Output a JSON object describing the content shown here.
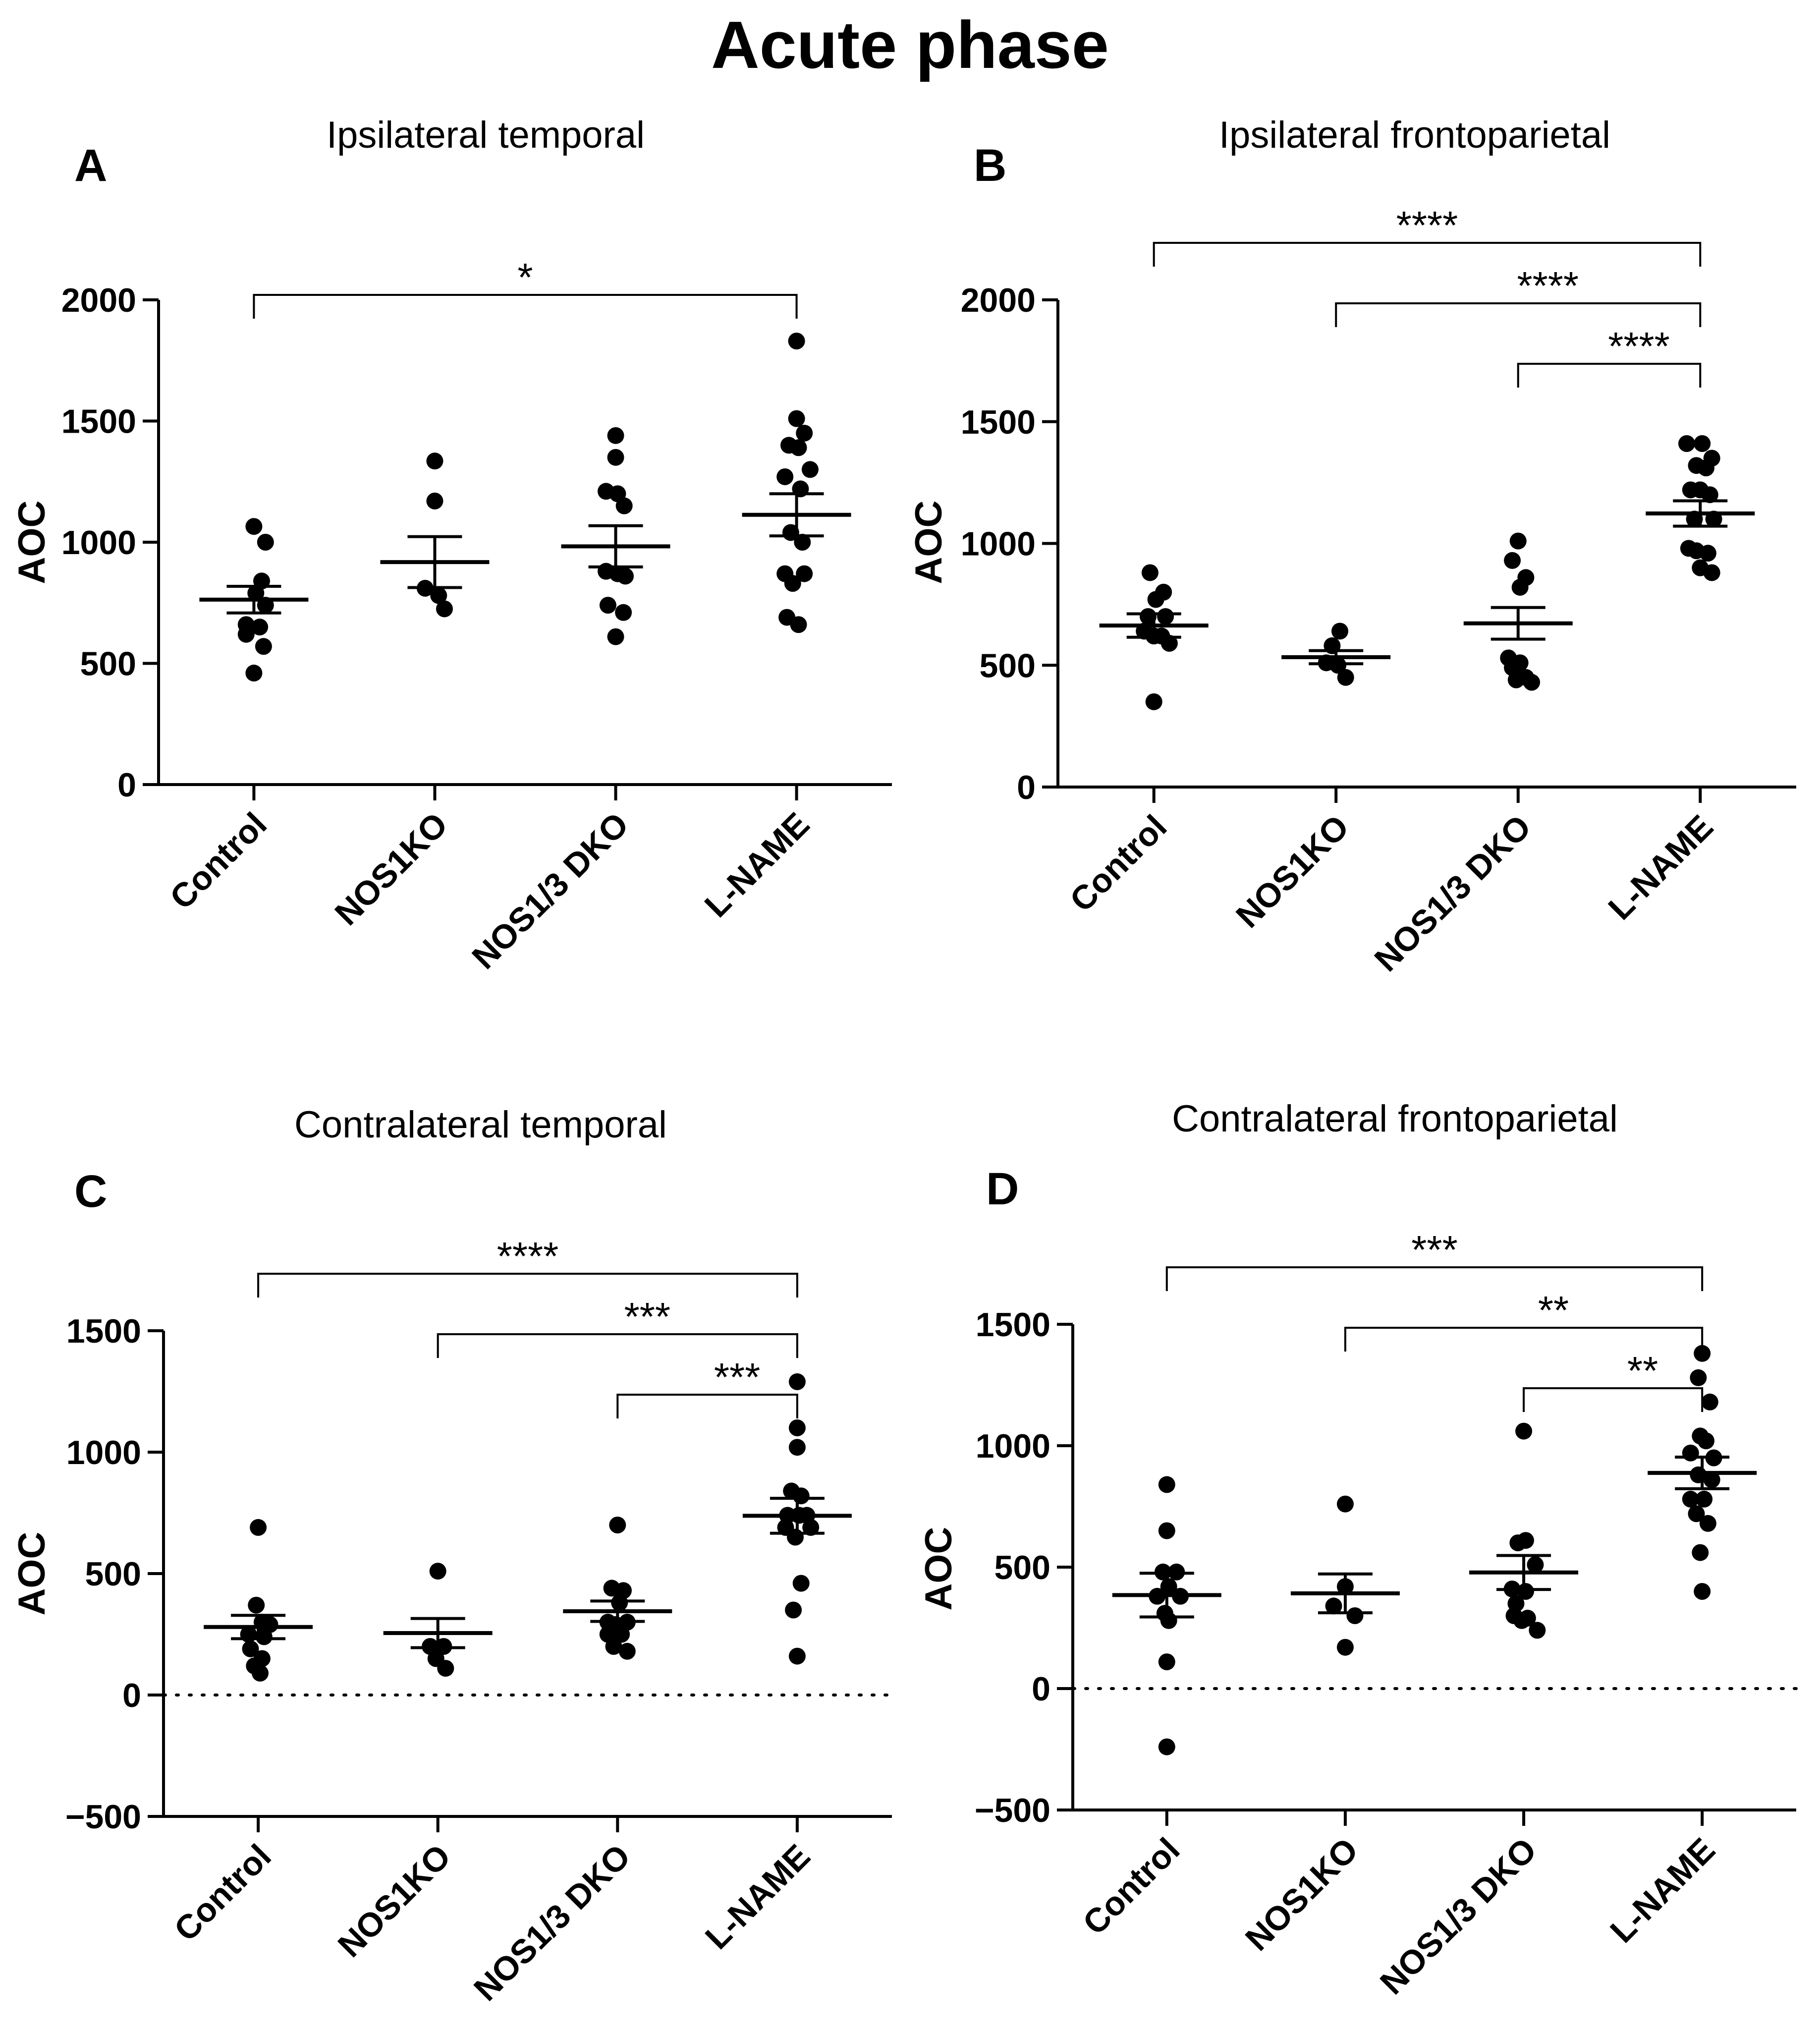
{
  "title": "Acute phase",
  "point_color": "#000000",
  "chart_data": [
    {
      "type": "scatter",
      "panel": "A",
      "title": "Ipsilateral temporal",
      "ylabel": "AOC",
      "ylim": [
        0,
        2000
      ],
      "yticks": [
        0,
        500,
        1000,
        1500,
        2000
      ],
      "zero_line": false,
      "categories": [
        "Control",
        "NOS1KO",
        "NOS1/3 DKO",
        "L-NAME"
      ],
      "points": [
        [
          {
            "x": 0,
            "y": 1065
          },
          {
            "x": 0.3,
            "y": 1000
          },
          {
            "x": 0.2,
            "y": 840
          },
          {
            "x": 0.05,
            "y": 790
          },
          {
            "x": 0.3,
            "y": 740
          },
          {
            "x": -0.2,
            "y": 660
          },
          {
            "x": 0.15,
            "y": 650
          },
          {
            "x": -0.2,
            "y": 620
          },
          {
            "x": 0.25,
            "y": 570
          },
          {
            "x": 0,
            "y": 460
          }
        ],
        [
          {
            "x": 0,
            "y": 1335
          },
          {
            "x": 0,
            "y": 1170
          },
          {
            "x": -0.25,
            "y": 810
          },
          {
            "x": 0.1,
            "y": 780
          },
          {
            "x": 0.25,
            "y": 725
          }
        ],
        [
          {
            "x": 0,
            "y": 1440
          },
          {
            "x": 0,
            "y": 1350
          },
          {
            "x": -0.25,
            "y": 1210
          },
          {
            "x": 0.05,
            "y": 1200
          },
          {
            "x": 0.22,
            "y": 1150
          },
          {
            "x": -0.25,
            "y": 880
          },
          {
            "x": 0.05,
            "y": 870
          },
          {
            "x": 0.25,
            "y": 860
          },
          {
            "x": -0.2,
            "y": 740
          },
          {
            "x": 0.2,
            "y": 710
          },
          {
            "x": 0,
            "y": 610
          }
        ],
        [
          {
            "x": 0,
            "y": 1830
          },
          {
            "x": 0,
            "y": 1510
          },
          {
            "x": 0.2,
            "y": 1450
          },
          {
            "x": -0.2,
            "y": 1400
          },
          {
            "x": 0.05,
            "y": 1390
          },
          {
            "x": 0.35,
            "y": 1300
          },
          {
            "x": -0.3,
            "y": 1270
          },
          {
            "x": 0.1,
            "y": 1220
          },
          {
            "x": -0.15,
            "y": 1040
          },
          {
            "x": 0.15,
            "y": 1000
          },
          {
            "x": -0.3,
            "y": 870
          },
          {
            "x": 0.2,
            "y": 870
          },
          {
            "x": -0.1,
            "y": 830
          },
          {
            "x": -0.25,
            "y": 690
          },
          {
            "x": 0.05,
            "y": 660
          }
        ]
      ],
      "mean": [
        763,
        918,
        983,
        1113
      ],
      "sem": [
        55,
        105,
        85,
        87
      ],
      "brackets": [
        {
          "from": 0,
          "to": 3,
          "label": "*"
        }
      ]
    },
    {
      "type": "scatter",
      "panel": "B",
      "title": "Ipsilateral frontoparietal",
      "ylabel": "AOC",
      "ylim": [
        0,
        2000
      ],
      "yticks": [
        0,
        500,
        1000,
        1500,
        2000
      ],
      "zero_line": false,
      "categories": [
        "Control",
        "NOS1KO",
        "NOS1/3 DKO",
        "L-NAME"
      ],
      "points": [
        [
          {
            "x": -0.1,
            "y": 880
          },
          {
            "x": 0.25,
            "y": 800
          },
          {
            "x": 0.05,
            "y": 770
          },
          {
            "x": -0.15,
            "y": 700
          },
          {
            "x": 0.3,
            "y": 700
          },
          {
            "x": -0.25,
            "y": 640
          },
          {
            "x": 0,
            "y": 620
          },
          {
            "x": 0.2,
            "y": 620
          },
          {
            "x": 0.4,
            "y": 590
          },
          {
            "x": 0,
            "y": 350
          }
        ],
        [
          {
            "x": 0.1,
            "y": 640
          },
          {
            "x": -0.1,
            "y": 580
          },
          {
            "x": -0.25,
            "y": 510
          },
          {
            "x": 0.05,
            "y": 500
          },
          {
            "x": 0.25,
            "y": 450
          }
        ],
        [
          {
            "x": 0,
            "y": 1010
          },
          {
            "x": -0.15,
            "y": 930
          },
          {
            "x": 0.2,
            "y": 860
          },
          {
            "x": 0.05,
            "y": 820
          },
          {
            "x": -0.25,
            "y": 530
          },
          {
            "x": 0.05,
            "y": 510
          },
          {
            "x": -0.15,
            "y": 490
          },
          {
            "x": 0.2,
            "y": 450
          },
          {
            "x": 0.35,
            "y": 430
          },
          {
            "x": -0.05,
            "y": 440
          }
        ],
        [
          {
            "x": -0.35,
            "y": 1410
          },
          {
            "x": 0.05,
            "y": 1410
          },
          {
            "x": 0.3,
            "y": 1350
          },
          {
            "x": -0.1,
            "y": 1320
          },
          {
            "x": 0.15,
            "y": 1310
          },
          {
            "x": -0.25,
            "y": 1220
          },
          {
            "x": 0,
            "y": 1220
          },
          {
            "x": 0.25,
            "y": 1200
          },
          {
            "x": -0.15,
            "y": 1100
          },
          {
            "x": 0.35,
            "y": 1100
          },
          {
            "x": -0.3,
            "y": 980
          },
          {
            "x": -0.1,
            "y": 970
          },
          {
            "x": 0.2,
            "y": 960
          },
          {
            "x": 0,
            "y": 900
          },
          {
            "x": 0.3,
            "y": 880
          }
        ]
      ],
      "mean": [
        663,
        533,
        672,
        1123
      ],
      "sem": [
        48,
        27,
        65,
        52
      ],
      "brackets": [
        {
          "from": 0,
          "to": 3,
          "label": "****"
        },
        {
          "from": 1,
          "to": 3,
          "label": "****"
        },
        {
          "from": 2,
          "to": 3,
          "label": "****"
        }
      ]
    },
    {
      "type": "scatter",
      "panel": "C",
      "title": "Contralateral temporal",
      "ylabel": "AOC",
      "ylim": [
        -500,
        1500
      ],
      "yticks": [
        -500,
        0,
        500,
        1000,
        1500
      ],
      "zero_line": true,
      "categories": [
        "Control",
        "NOS1KO",
        "NOS1/3 DKO",
        "L-NAME"
      ],
      "points": [
        [
          {
            "x": 0,
            "y": 690
          },
          {
            "x": -0.05,
            "y": 370
          },
          {
            "x": 0.1,
            "y": 300
          },
          {
            "x": 0.3,
            "y": 290
          },
          {
            "x": -0.25,
            "y": 250
          },
          {
            "x": 0.15,
            "y": 240
          },
          {
            "x": -0.2,
            "y": 190
          },
          {
            "x": 0.1,
            "y": 150
          },
          {
            "x": -0.1,
            "y": 120
          },
          {
            "x": 0.05,
            "y": 90
          }
        ],
        [
          {
            "x": 0,
            "y": 510
          },
          {
            "x": -0.2,
            "y": 200
          },
          {
            "x": 0.15,
            "y": 200
          },
          {
            "x": -0.05,
            "y": 150
          },
          {
            "x": 0.2,
            "y": 110
          }
        ],
        [
          {
            "x": 0,
            "y": 700
          },
          {
            "x": -0.15,
            "y": 440
          },
          {
            "x": 0.15,
            "y": 430
          },
          {
            "x": 0.05,
            "y": 380
          },
          {
            "x": -0.25,
            "y": 300
          },
          {
            "x": 0.25,
            "y": 300
          },
          {
            "x": -0.05,
            "y": 290
          },
          {
            "x": -0.25,
            "y": 250
          },
          {
            "x": 0.1,
            "y": 250
          },
          {
            "x": -0.1,
            "y": 200
          },
          {
            "x": 0.25,
            "y": 180
          }
        ],
        [
          {
            "x": 0,
            "y": 1290
          },
          {
            "x": 0,
            "y": 1100
          },
          {
            "x": 0,
            "y": 1020
          },
          {
            "x": -0.15,
            "y": 840
          },
          {
            "x": 0.1,
            "y": 820
          },
          {
            "x": -0.25,
            "y": 740
          },
          {
            "x": 0.05,
            "y": 740
          },
          {
            "x": 0.25,
            "y": 740
          },
          {
            "x": -0.3,
            "y": 690
          },
          {
            "x": 0.35,
            "y": 690
          },
          {
            "x": -0.05,
            "y": 650
          },
          {
            "x": 0.1,
            "y": 460
          },
          {
            "x": -0.1,
            "y": 350
          },
          {
            "x": 0,
            "y": 160
          }
        ]
      ],
      "mean": [
        280,
        255,
        345,
        738
      ],
      "sem": [
        48,
        60,
        42,
        72
      ],
      "brackets": [
        {
          "from": 0,
          "to": 3,
          "label": "****"
        },
        {
          "from": 1,
          "to": 3,
          "label": "***"
        },
        {
          "from": 2,
          "to": 3,
          "label": "***"
        }
      ]
    },
    {
      "type": "scatter",
      "panel": "D",
      "title": "Contralateral frontoparietal",
      "ylabel": "AOC",
      "ylim": [
        -500,
        1500
      ],
      "yticks": [
        -500,
        0,
        500,
        1000,
        1500
      ],
      "zero_line": true,
      "categories": [
        "Control",
        "NOS1KO",
        "NOS1/3 DKO",
        "L-NAME"
      ],
      "points": [
        [
          {
            "x": 0,
            "y": 840
          },
          {
            "x": 0,
            "y": 650
          },
          {
            "x": -0.1,
            "y": 480
          },
          {
            "x": 0.25,
            "y": 480
          },
          {
            "x": 0.05,
            "y": 420
          },
          {
            "x": -0.25,
            "y": 380
          },
          {
            "x": 0.35,
            "y": 380
          },
          {
            "x": -0.05,
            "y": 310
          },
          {
            "x": 0.05,
            "y": 280
          },
          {
            "x": 0,
            "y": 110
          },
          {
            "x": 0,
            "y": -240
          }
        ],
        [
          {
            "x": 0,
            "y": 760
          },
          {
            "x": 0,
            "y": 420
          },
          {
            "x": -0.3,
            "y": 340
          },
          {
            "x": 0.25,
            "y": 300
          },
          {
            "x": 0,
            "y": 170
          }
        ],
        [
          {
            "x": 0,
            "y": 1060
          },
          {
            "x": 0.05,
            "y": 610
          },
          {
            "x": -0.15,
            "y": 600
          },
          {
            "x": 0.3,
            "y": 510
          },
          {
            "x": -0.3,
            "y": 410
          },
          {
            "x": 0.05,
            "y": 400
          },
          {
            "x": -0.2,
            "y": 350
          },
          {
            "x": -0.25,
            "y": 300
          },
          {
            "x": 0.1,
            "y": 290
          },
          {
            "x": -0.05,
            "y": 280
          },
          {
            "x": 0.35,
            "y": 240
          }
        ],
        [
          {
            "x": 0,
            "y": 1380
          },
          {
            "x": -0.1,
            "y": 1280
          },
          {
            "x": 0.2,
            "y": 1180
          },
          {
            "x": -0.05,
            "y": 1040
          },
          {
            "x": 0.1,
            "y": 1020
          },
          {
            "x": -0.3,
            "y": 970
          },
          {
            "x": 0.3,
            "y": 950
          },
          {
            "x": -0.1,
            "y": 880
          },
          {
            "x": 0.25,
            "y": 860
          },
          {
            "x": -0.3,
            "y": 780
          },
          {
            "x": 0.05,
            "y": 780
          },
          {
            "x": -0.15,
            "y": 720
          },
          {
            "x": 0.15,
            "y": 680
          },
          {
            "x": -0.05,
            "y": 560
          },
          {
            "x": 0,
            "y": 400
          }
        ]
      ],
      "mean": [
        385,
        392,
        478,
        888
      ],
      "sem": [
        90,
        80,
        70,
        65
      ],
      "brackets": [
        {
          "from": 0,
          "to": 3,
          "label": "***"
        },
        {
          "from": 1,
          "to": 3,
          "label": "**"
        },
        {
          "from": 2,
          "to": 3,
          "label": "**"
        }
      ]
    }
  ]
}
